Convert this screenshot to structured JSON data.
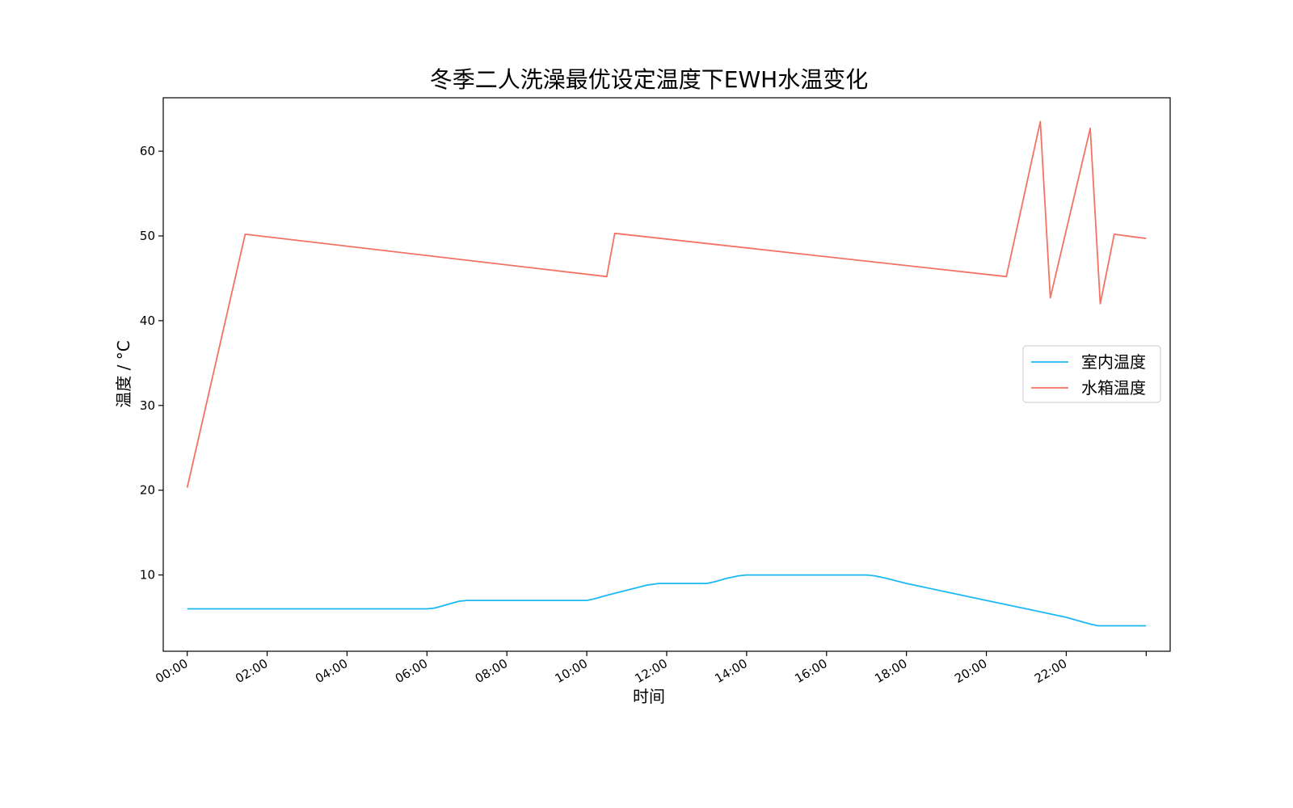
{
  "chart_data": {
    "type": "line",
    "title": "冬季二人洗澡最优设定温度下EWH水温变化",
    "xlabel": "时间",
    "ylabel": "温度 / °C",
    "x_unit": "time of day (hours)",
    "xlim": [
      -0.6,
      24.6
    ],
    "ylim": [
      1,
      66.3
    ],
    "x_ticks": [
      0,
      2,
      4,
      6,
      8,
      10,
      12,
      14,
      16,
      18,
      20,
      22,
      24
    ],
    "x_tick_labels": [
      "00:00",
      "02:00",
      "04:00",
      "06:00",
      "08:00",
      "10:00",
      "12:00",
      "14:00",
      "16:00",
      "18:00",
      "20:00",
      "22:00",
      ""
    ],
    "y_ticks": [
      10,
      20,
      30,
      40,
      50,
      60
    ],
    "y_tick_labels": [
      "10",
      "20",
      "30",
      "40",
      "50",
      "60"
    ],
    "legend_position": "center-right",
    "grid": false,
    "series": [
      {
        "name": "室内温度",
        "color": "#1cb8f4",
        "x": [
          0,
          1,
          2,
          3,
          4,
          5,
          6,
          6.2,
          6.5,
          6.8,
          7,
          8,
          9,
          10,
          10.2,
          10.5,
          11,
          11.5,
          11.8,
          12,
          13,
          13.2,
          13.5,
          13.8,
          14,
          15,
          16,
          17,
          17.2,
          17.5,
          18,
          19,
          20,
          21,
          22,
          22.3,
          22.6,
          22.8,
          23,
          24
        ],
        "y": [
          6,
          6,
          6,
          6,
          6,
          6,
          6,
          6.1,
          6.5,
          6.9,
          7,
          7,
          7,
          7,
          7.2,
          7.6,
          8.2,
          8.8,
          9,
          9,
          9,
          9.2,
          9.6,
          9.9,
          10,
          10,
          10,
          10,
          9.9,
          9.6,
          9,
          8,
          7,
          6,
          5,
          4.6,
          4.2,
          4,
          4,
          4
        ]
      },
      {
        "name": "水箱温度",
        "color": "#f47265",
        "x": [
          0,
          1.45,
          10.5,
          10.7,
          20.5,
          21.35,
          21.6,
          22.6,
          22.85,
          23.2,
          24
        ],
        "y": [
          20.3,
          50.2,
          45.2,
          50.3,
          45.2,
          63.5,
          42.7,
          62.7,
          42.0,
          50.2,
          49.7
        ]
      }
    ]
  }
}
